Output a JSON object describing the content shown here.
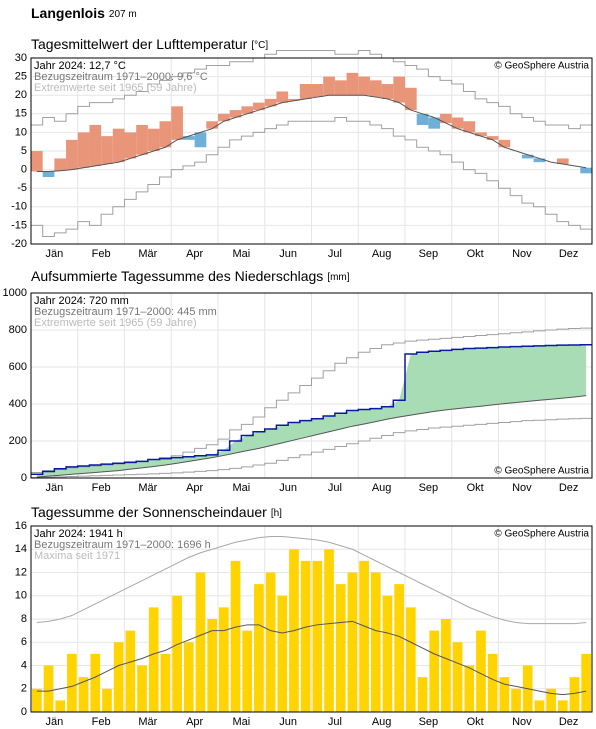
{
  "header": {
    "title": "Langenlois",
    "subtitle": "207 m"
  },
  "chart_data": [
    {
      "type": "anomaly",
      "title": "Tagesmittelwert der Lufttemperatur",
      "unit": "[°C]",
      "credit": "© GeoSphere Austria",
      "credit_corner": "top-right",
      "months": [
        "Jän",
        "Feb",
        "Mär",
        "Apr",
        "Mai",
        "Jun",
        "Jul",
        "Aug",
        "Sep",
        "Okt",
        "Nov",
        "Dez"
      ],
      "ylim": [
        -20,
        30
      ],
      "yticks": [
        -20,
        -15,
        -10,
        -5,
        0,
        5,
        10,
        15,
        20,
        25,
        30
      ],
      "grid": true,
      "color_above": "#e8957a",
      "color_below": "#6fb0d8",
      "series": [
        {
          "name": "Jahr 2024: 12,7 °C",
          "color": "#000000",
          "values": [
            5,
            -2,
            3,
            8,
            10,
            12,
            9,
            11,
            10,
            12,
            11,
            13,
            17,
            8,
            6,
            13,
            15,
            16,
            17,
            18,
            19,
            21,
            19,
            23,
            23,
            25,
            24,
            26,
            25,
            24,
            23,
            25,
            22,
            12,
            11,
            15,
            14,
            13,
            10,
            9,
            8,
            5,
            3,
            2,
            2,
            3,
            1,
            -1
          ]
        },
        {
          "name": "Bezugszeitraum 1971–2000: 9,6 °C",
          "color": "#555555",
          "values": [
            -0.5,
            -0.5,
            -0.3,
            0,
            0.5,
            1,
            1.5,
            2,
            3,
            4,
            5,
            6,
            8,
            9,
            10,
            11,
            13,
            14,
            15,
            16,
            17,
            18,
            18.5,
            19,
            19.5,
            20,
            20,
            20,
            20,
            19.5,
            19,
            18,
            16,
            15,
            14,
            12.5,
            11,
            10,
            9,
            8,
            6,
            5,
            4,
            3,
            2,
            1.5,
            1,
            0.5
          ]
        },
        {
          "name": "Extremwerte seit 1965 (59 Jahre)",
          "color": "#a0a0a0",
          "upper": [
            12,
            14,
            13,
            15,
            17,
            18,
            18,
            19,
            20,
            21,
            23,
            24,
            25,
            26,
            27,
            28,
            28,
            29,
            29,
            30,
            31,
            32,
            32,
            32,
            32,
            32,
            31,
            31,
            32,
            31,
            30,
            29,
            28,
            27,
            25,
            24,
            23,
            21,
            19,
            18,
            17,
            15,
            14,
            13,
            12,
            12,
            11,
            12
          ],
          "lower": [
            -15,
            -18,
            -17,
            -16,
            -14,
            -15,
            -12,
            -10,
            -8,
            -6,
            -4,
            -2,
            0,
            1,
            2,
            4,
            6,
            8,
            9,
            10,
            11,
            12,
            13,
            13,
            13,
            13,
            14,
            13,
            13,
            12,
            11,
            9,
            8,
            6,
            5,
            4,
            2,
            0,
            -1,
            -3,
            -5,
            -7,
            -9,
            -10,
            -12,
            -14,
            -15,
            -16
          ]
        }
      ]
    },
    {
      "type": "line",
      "title": "Aufsummierte Tagessumme des Niederschlags",
      "unit": "[mm]",
      "credit": "© GeoSphere Austria",
      "credit_corner": "bottom-right",
      "months": [
        "Jän",
        "Feb",
        "Mär",
        "Apr",
        "Mai",
        "Jun",
        "Jul",
        "Aug",
        "Sep",
        "Okt",
        "Nov",
        "Dez"
      ],
      "ylim": [
        0,
        1000
      ],
      "yticks": [
        0,
        200,
        400,
        600,
        800,
        1000
      ],
      "grid": true,
      "fill_color": "#a8dcb4",
      "series": [
        {
          "name": "Jahr 2024: 720 mm",
          "color": "#0a1aa0",
          "values": [
            20,
            35,
            50,
            60,
            65,
            70,
            75,
            80,
            85,
            90,
            100,
            105,
            110,
            115,
            120,
            125,
            150,
            200,
            230,
            250,
            265,
            285,
            300,
            310,
            320,
            335,
            350,
            365,
            370,
            375,
            385,
            420,
            670,
            680,
            685,
            690,
            695,
            700,
            702,
            705,
            708,
            710,
            712,
            714,
            716,
            718,
            719,
            720
          ]
        },
        {
          "name": "Bezugszeitraum 1971–2000: 445 mm",
          "color": "#555555",
          "values": [
            5,
            10,
            15,
            20,
            25,
            30,
            35,
            40,
            48,
            55,
            62,
            70,
            80,
            90,
            100,
            110,
            122,
            135,
            148,
            160,
            175,
            190,
            205,
            220,
            235,
            250,
            265,
            280,
            292,
            305,
            318,
            330,
            340,
            350,
            360,
            368,
            375,
            382,
            388,
            395,
            402,
            408,
            414,
            420,
            426,
            432,
            438,
            445
          ]
        },
        {
          "name": "Extremwerte seit 1965 (59 Jahre)",
          "color": "#a0a0a0",
          "upper": [
            30,
            40,
            45,
            55,
            60,
            65,
            70,
            75,
            80,
            90,
            100,
            110,
            120,
            140,
            160,
            180,
            210,
            260,
            290,
            330,
            380,
            420,
            460,
            500,
            540,
            580,
            620,
            650,
            680,
            700,
            720,
            730,
            740,
            745,
            750,
            755,
            760,
            765,
            770,
            775,
            780,
            785,
            790,
            795,
            800,
            805,
            808,
            810
          ],
          "lower": [
            2,
            4,
            6,
            8,
            10,
            12,
            14,
            16,
            18,
            20,
            22,
            25,
            28,
            32,
            36,
            40,
            45,
            52,
            60,
            70,
            80,
            95,
            110,
            125,
            140,
            155,
            170,
            185,
            200,
            215,
            230,
            245,
            255,
            262,
            270,
            275,
            280,
            285,
            290,
            295,
            300,
            305,
            310,
            312,
            315,
            318,
            320,
            322
          ]
        }
      ]
    },
    {
      "type": "bar",
      "title": "Tagessumme der Sonnenscheindauer",
      "unit": "[h]",
      "credit": "© GeoSphere Austria",
      "credit_corner": "top-right",
      "months": [
        "Jän",
        "Feb",
        "Mär",
        "Apr",
        "Mai",
        "Jun",
        "Jul",
        "Aug",
        "Sep",
        "Okt",
        "Nov",
        "Dez"
      ],
      "ylim": [
        0,
        16
      ],
      "yticks": [
        0,
        2,
        4,
        6,
        8,
        10,
        12,
        14,
        16
      ],
      "grid": true,
      "series": [
        {
          "name": "Jahr 2024: 1941 h",
          "color": "#ffd400",
          "values": [
            2,
            4,
            1,
            5,
            3,
            5,
            2,
            6,
            7,
            4,
            9,
            5,
            10,
            6,
            12,
            8,
            9,
            13,
            7,
            11,
            12,
            10,
            14,
            13,
            13,
            14,
            11,
            12,
            13,
            12,
            10,
            11,
            9,
            3,
            7,
            8,
            6,
            4,
            7,
            5,
            3,
            2,
            4,
            1,
            2,
            1,
            3,
            5
          ]
        },
        {
          "name": "Bezugszeitraum 1971–2000: 1696 h",
          "color": "#555555",
          "values": [
            1.8,
            1.8,
            2,
            2.2,
            2.6,
            3,
            3.5,
            4,
            4.3,
            4.6,
            5,
            5.3,
            5.8,
            6.2,
            6.6,
            7,
            7,
            7.3,
            7.5,
            7.5,
            7,
            6.8,
            7,
            7.3,
            7.5,
            7.6,
            7.7,
            7.8,
            7.4,
            7,
            6.8,
            6.5,
            6,
            5.5,
            5,
            4.6,
            4.2,
            3.8,
            3.3,
            2.8,
            2.4,
            2.2,
            2,
            1.8,
            1.6,
            1.5,
            1.6,
            1.8
          ]
        },
        {
          "name": "Maxima seit 1971",
          "color": "#a8a8a8",
          "values": [
            7.7,
            7.8,
            8,
            8.3,
            8.8,
            9.3,
            9.8,
            10.3,
            10.8,
            11.3,
            11.8,
            12.3,
            12.8,
            13.3,
            13.7,
            14,
            14.3,
            14.6,
            14.8,
            15,
            15.1,
            15.1,
            15,
            14.9,
            14.8,
            14.6,
            14.3,
            14,
            13.5,
            13,
            12.5,
            12,
            11.5,
            11,
            10.5,
            10,
            9.5,
            9,
            8.6,
            8.2,
            7.9,
            7.7,
            7.6,
            7.6,
            7.6,
            7.6,
            7.6,
            7.7
          ]
        }
      ]
    }
  ]
}
